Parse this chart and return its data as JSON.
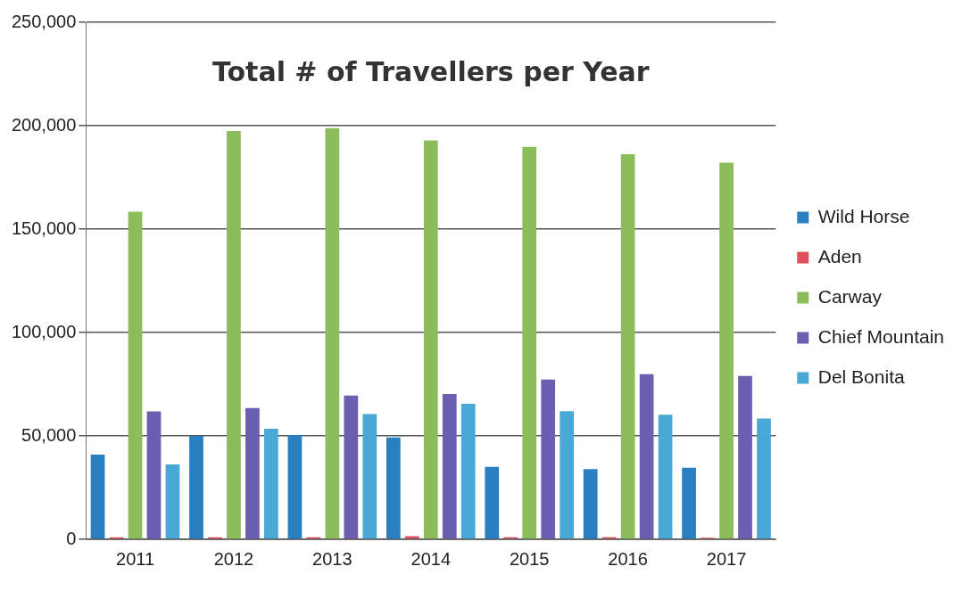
{
  "chart_data": {
    "type": "bar",
    "title": "Total # of Travellers per Year",
    "categories": [
      "2011",
      "2012",
      "2013",
      "2014",
      "2015",
      "2016",
      "2017"
    ],
    "series": [
      {
        "name": "Wild Horse",
        "color": "#2a7fc1",
        "values": [
          41000,
          50000,
          50400,
          49200,
          35000,
          33900,
          34600
        ]
      },
      {
        "name": "Aden",
        "color": "#e0505a",
        "values": [
          1000,
          1000,
          1000,
          1500,
          1000,
          1000,
          800
        ]
      },
      {
        "name": "Carway",
        "color": "#8bbd5a",
        "values": [
          158400,
          197400,
          198800,
          192900,
          189800,
          186200,
          182100
        ]
      },
      {
        "name": "Chief Mountain",
        "color": "#6a5fb0",
        "values": [
          61800,
          63500,
          69500,
          70300,
          77300,
          79900,
          79000
        ]
      },
      {
        "name": "Del Bonita",
        "color": "#4aa8d6",
        "values": [
          36200,
          53500,
          60600,
          65500,
          62000,
          60200,
          58400
        ]
      }
    ],
    "ylim": [
      0,
      250000
    ],
    "yticks": [
      0,
      {
        "value": 50000,
        "label": "50,000"
      },
      {
        "value": 100000,
        "label": "100,000"
      },
      {
        "value": 150000,
        "label": "150,000"
      },
      {
        "value": 200000,
        "label": "200,000"
      },
      {
        "value": 250000,
        "label": "250,000"
      }
    ],
    "grid": "y",
    "legend": "right"
  }
}
